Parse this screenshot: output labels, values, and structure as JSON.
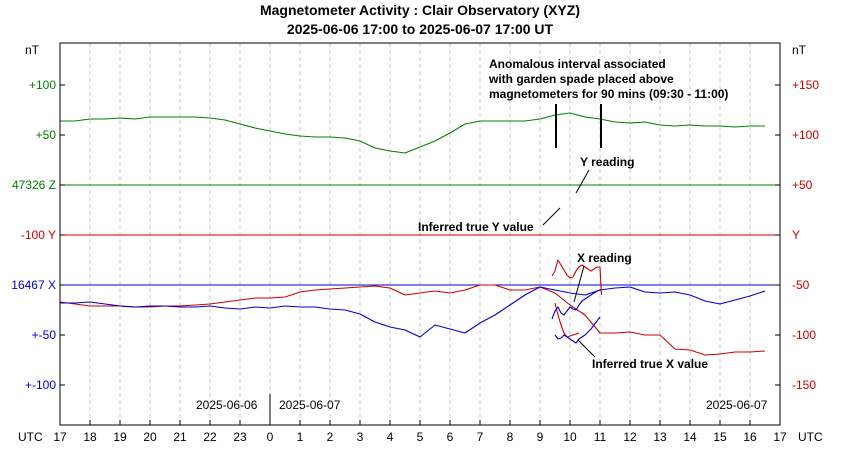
{
  "chart_data": {
    "type": "line",
    "title": "Magnetometer Activity : Clair Observatory (XYZ)",
    "subtitle": "2025-06-06 17:00 to 2025-06-07 17:00 UT",
    "xlabel_left": "UTC",
    "xlabel_right": "UTC",
    "x_ticks": [
      "17",
      "18",
      "19",
      "20",
      "21",
      "22",
      "23",
      "0",
      "1",
      "2",
      "3",
      "4",
      "5",
      "6",
      "7",
      "8",
      "9",
      "10",
      "11",
      "12",
      "13",
      "14",
      "15",
      "16",
      "17"
    ],
    "date_labels": [
      "2025-06-06",
      "2025-06-07",
      "2025-06-07"
    ],
    "left_unit": "nT",
    "right_unit": "nT",
    "left_ticks": [
      {
        "text": "+100",
        "color": "#008000"
      },
      {
        "text": "+50",
        "color": "#008000"
      },
      {
        "text": "47326 Z",
        "color": "#008000"
      },
      {
        "text": "-100  Y",
        "color": "#cc0000"
      },
      {
        "text": "16467 X",
        "color": "#0000cc"
      },
      {
        "text": "+-50",
        "color": "#0000cc"
      },
      {
        "text": "+-100",
        "color": "#0000cc"
      }
    ],
    "right_ticks": [
      {
        "text": "+150",
        "color": "#cc0000"
      },
      {
        "text": "+100",
        "color": "#cc0000"
      },
      {
        "text": "+50",
        "color": "#cc0000"
      },
      {
        "text": "Y",
        "color": "#cc0000"
      },
      {
        "text": "-50",
        "color": "#cc0000"
      },
      {
        "text": "-100",
        "color": "#cc0000"
      },
      {
        "text": "-150",
        "color": "#cc0000"
      }
    ],
    "x_hours": [
      0,
      0.5,
      1,
      1.5,
      2,
      2.5,
      3,
      3.5,
      4,
      4.5,
      5,
      5.5,
      6,
      6.5,
      7,
      7.5,
      8,
      8.5,
      9,
      9.5,
      10,
      10.5,
      11,
      11.5,
      12,
      12.5,
      13,
      13.5,
      14,
      14.5,
      15,
      15.5,
      16,
      16.5,
      17,
      17.5,
      18,
      18.5,
      19,
      19.5,
      20,
      20.5,
      21,
      21.5,
      22,
      22.5,
      23,
      23.5
    ],
    "series": [
      {
        "key": "Z",
        "color": "#008000",
        "values": [
          64,
          64,
          66,
          66,
          67,
          66,
          68,
          68,
          68,
          68,
          67,
          65,
          61,
          57,
          54,
          51,
          49,
          48,
          48,
          47,
          44,
          37,
          34,
          32,
          38,
          44,
          52,
          61,
          64,
          64,
          64,
          64,
          66,
          70,
          72,
          68,
          66,
          63,
          62,
          63,
          60,
          59,
          60,
          59,
          59,
          58,
          59,
          59
        ]
      },
      {
        "key": "Y",
        "color": "#cc0000",
        "values": [
          -67,
          -69,
          -71,
          -71,
          -71,
          -72,
          -72,
          -71,
          -71,
          -70,
          -69,
          -67,
          -65,
          -63,
          -63,
          -62,
          -57,
          -55,
          -54,
          -53,
          -52,
          -51,
          -53,
          -60,
          -58,
          -56,
          -58,
          -55,
          -50,
          -50,
          -55,
          -55,
          -52,
          -58,
          -70,
          -80,
          -98,
          -98,
          -97,
          -100,
          -100,
          -114,
          -115,
          -120,
          -119,
          -117,
          -117,
          -116
        ]
      },
      {
        "key": "X",
        "color": "#0000cc",
        "values": [
          -18,
          -18,
          -17,
          -19,
          -21,
          -22,
          -21,
          -21,
          -22,
          -22,
          -21,
          -23,
          -24,
          -22,
          -23,
          -21,
          -22,
          -22,
          -24,
          -25,
          -29,
          -37,
          -42,
          -45,
          -52,
          -40,
          -44,
          -48,
          -38,
          -30,
          -20,
          -10,
          -2,
          -5,
          -8,
          -10,
          -5,
          -3,
          -2,
          -7,
          -8,
          -7,
          -10,
          -16,
          -19,
          -15,
          -11,
          -6
        ]
      },
      {
        "key": "Y_spike",
        "color": "#cc0000",
        "hours": [
          16.4,
          16.5,
          16.55,
          16.6,
          16.7,
          16.8,
          16.9,
          17.0,
          17.1,
          17.2,
          17.3,
          17.4,
          17.5,
          17.6,
          17.7,
          17.8,
          17.9,
          18.0,
          18.05
        ],
        "values": [
          -41,
          -36,
          -30,
          -25,
          -30,
          -35,
          -40,
          -43,
          -42,
          -36,
          -32,
          -30,
          -32,
          -34,
          -36,
          -34,
          -32,
          -32,
          -60
        ]
      },
      {
        "key": "Y_true",
        "color": "#cc0000",
        "hours": [
          16.5,
          16.6,
          16.7,
          16.8,
          16.9,
          17.0,
          17.1,
          17.2,
          17.3
        ],
        "values": [
          -68,
          -80,
          -90,
          -98,
          -102,
          -101,
          -100,
          -99,
          -98
        ]
      },
      {
        "key": "X_spike",
        "color": "#0000cc",
        "hours": [
          16.4,
          16.5,
          16.6,
          16.7,
          16.8,
          16.9,
          17.0,
          17.1,
          17.2,
          17.3,
          17.4,
          17.5,
          17.6,
          17.7,
          17.8,
          17.9,
          18.0
        ],
        "values": [
          -34,
          -26,
          -22,
          -28,
          -30,
          -26,
          -22,
          -24,
          -25,
          -20,
          -16,
          -14,
          -12,
          -10,
          -8,
          -6,
          -5
        ]
      },
      {
        "key": "X_true",
        "color": "#0000cc",
        "hours": [
          16.5,
          16.6,
          16.7,
          16.8,
          16.9,
          17.0,
          17.1,
          17.2,
          17.3,
          17.4,
          17.5,
          17.6,
          17.7,
          17.8,
          17.9,
          18.0
        ],
        "values": [
          -50,
          -54,
          -53,
          -50,
          -52,
          -54,
          -56,
          -58,
          -54,
          -52,
          -50,
          -47,
          -44,
          -40,
          -36,
          -32
        ]
      }
    ],
    "baselines": [
      {
        "key": "Z",
        "color": "#008000"
      },
      {
        "key": "Y",
        "color": "#cc0000"
      },
      {
        "key": "X",
        "color": "#0000cc"
      }
    ],
    "annotations": {
      "spade_note": [
        "Anomalous interval associated",
        "with garden spade placed above",
        "magnetometers for 90 mins (09:30 - 11:00)"
      ],
      "y_reading": "Y reading",
      "y_true": "Inferred true Y value",
      "x_reading": "X reading",
      "x_true": "Inferred true X value"
    },
    "grid": true
  }
}
